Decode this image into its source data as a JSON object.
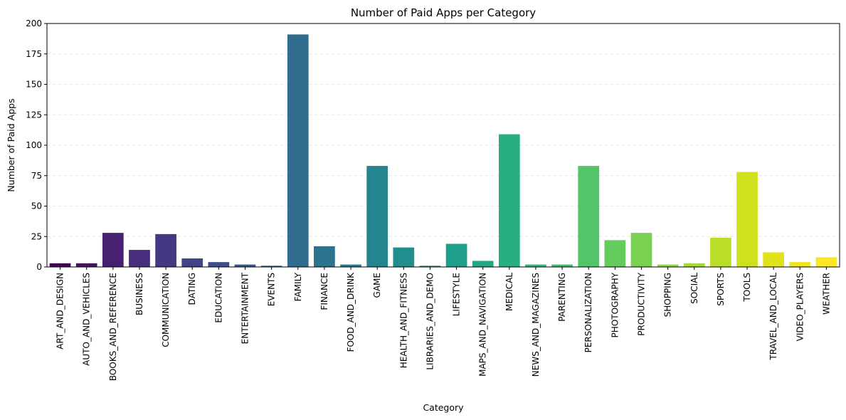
{
  "chart_data": {
    "type": "bar",
    "title": "Number of Paid Apps per Category",
    "xlabel": "Category",
    "ylabel": "Number of Paid Apps",
    "ylim": [
      0,
      200
    ],
    "yticks": [
      0,
      25,
      50,
      75,
      100,
      125,
      150,
      175,
      200
    ],
    "grid": "y-dashed",
    "categories": [
      "ART_AND_DESIGN",
      "AUTO_AND_VEHICLES",
      "BOOKS_AND_REFERENCE",
      "BUSINESS",
      "COMMUNICATION",
      "DATING",
      "EDUCATION",
      "ENTERTAINMENT",
      "EVENTS",
      "FAMILY",
      "FINANCE",
      "FOOD_AND_DRINK",
      "GAME",
      "HEALTH_AND_FITNESS",
      "LIBRARIES_AND_DEMO",
      "LIFESTYLE",
      "MAPS_AND_NAVIGATION",
      "MEDICAL",
      "NEWS_AND_MAGAZINES",
      "PARENTING",
      "PERSONALIZATION",
      "PHOTOGRAPHY",
      "PRODUCTIVITY",
      "SHOPPING",
      "SOCIAL",
      "SPORTS",
      "TOOLS",
      "TRAVEL_AND_LOCAL",
      "VIDEO_PLAYERS",
      "WEATHER"
    ],
    "values": [
      3,
      3,
      28,
      14,
      27,
      7,
      4,
      2,
      1,
      191,
      17,
      2,
      83,
      16,
      1,
      19,
      5,
      109,
      2,
      2,
      83,
      22,
      28,
      2,
      3,
      24,
      78,
      12,
      4,
      8
    ],
    "colors": [
      "#450559",
      "#471365",
      "#482071",
      "#472d7b",
      "#453882",
      "#414487",
      "#3d4e8a",
      "#38598c",
      "#33628d",
      "#2f6c8e",
      "#2c738e",
      "#287d8e",
      "#25858e",
      "#228d8d",
      "#1f968b",
      "#1f9e89",
      "#22a785",
      "#29af7f",
      "#35b779",
      "#42be71",
      "#52c569",
      "#65cb5e",
      "#79d151",
      "#8fd744",
      "#a5db36",
      "#bade28",
      "#cfe11c",
      "#e1e318",
      "#f0e51d",
      "#fde725"
    ]
  }
}
